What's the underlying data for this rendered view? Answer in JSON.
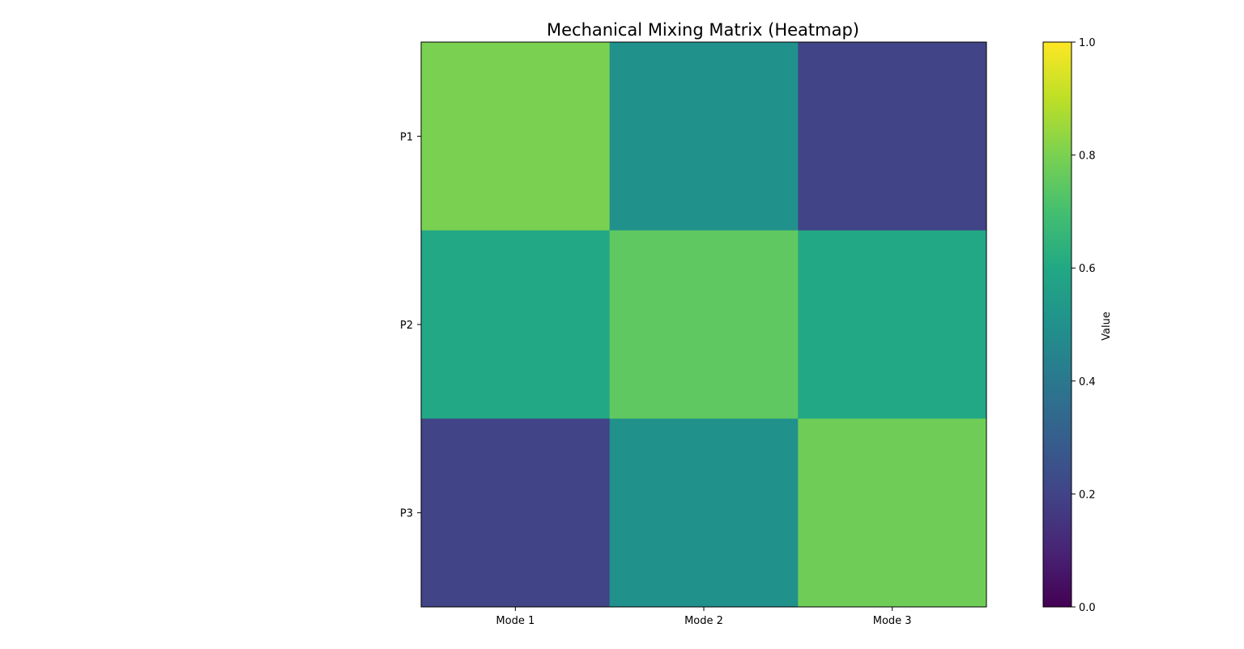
{
  "chart_data": {
    "type": "heatmap",
    "title": "Mechanical Mixing Matrix (Heatmap)",
    "x_categories": [
      "Mode 1",
      "Mode 2",
      "Mode 3"
    ],
    "y_categories": [
      "P1",
      "P2",
      "P3"
    ],
    "values": [
      [
        0.8,
        0.5,
        0.2
      ],
      [
        0.6,
        0.75,
        0.6
      ],
      [
        0.2,
        0.5,
        0.78
      ]
    ],
    "colorscale": "viridis",
    "vmin": 0.0,
    "vmax": 1.0,
    "colorbar": {
      "label": "Value",
      "ticks": [
        "0.0",
        "0.2",
        "0.4",
        "0.6",
        "0.8",
        "1.0"
      ]
    },
    "grid": false
  }
}
